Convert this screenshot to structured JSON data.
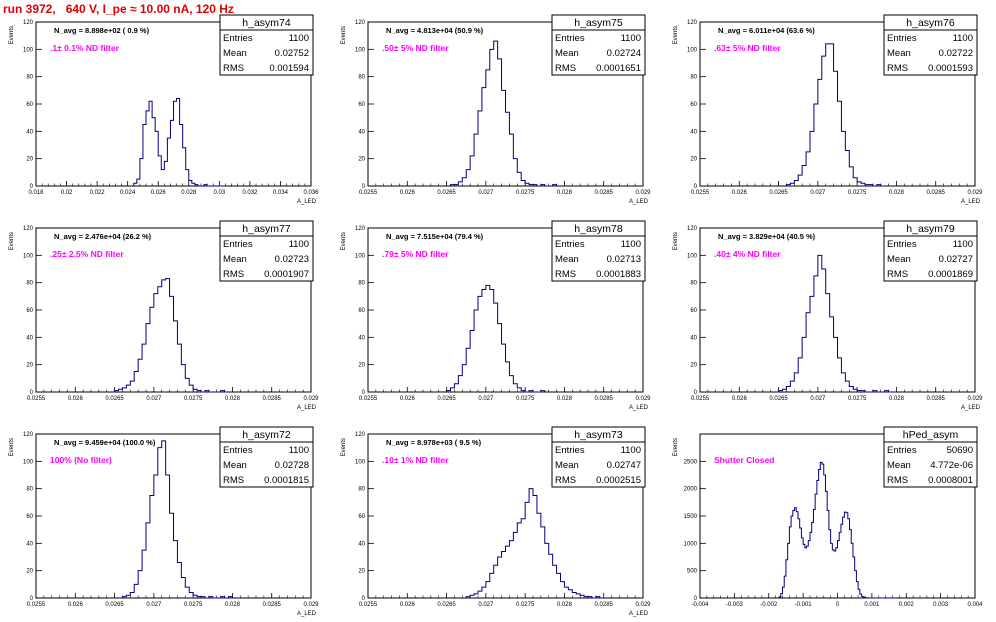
{
  "page": {
    "title": "run 3972,   640 V, I_pe ≈ 10.00 nA, 120 Hz",
    "title_color": "#e00000"
  },
  "style": {
    "hist_color": "#000080",
    "label_color": "#ff00ff",
    "axis_color": "#000000"
  },
  "chart_data": [
    {
      "type": "histogram",
      "name": "h_asym74",
      "navg": "N_avg = 8.898e+02 ( 0.9 %)",
      "label": ".1± 0.1% ND filter",
      "stats": [
        [
          "Entries",
          "1100"
        ],
        [
          "Mean",
          "0.02752"
        ],
        [
          "RMS",
          "0.001594"
        ]
      ],
      "ylabel": "Events",
      "xlabel": "A_LED",
      "xlim": [
        0.018,
        0.036
      ],
      "ylim": [
        0,
        120
      ],
      "xticks": [
        "0.018",
        "0.02",
        "0.022",
        "0.024",
        "0.026",
        "0.028",
        "0.03",
        "0.032",
        "0.034",
        "0.036"
      ],
      "yticks": [
        0,
        20,
        40,
        60,
        80,
        100,
        120
      ],
      "bin_edges": [
        0.0244,
        0.0304
      ],
      "bin_width": 0.0002,
      "counts": [
        2,
        5,
        20,
        45,
        55,
        62,
        50,
        40,
        22,
        12,
        18,
        35,
        48,
        62,
        64,
        45,
        28,
        12,
        4,
        2,
        1,
        0,
        0,
        1,
        0,
        0,
        0,
        0,
        0,
        0
      ]
    },
    {
      "type": "histogram",
      "name": "h_asym75",
      "navg": "N_avg = 4.813e+04 (50.9 %)",
      "label": ".50± 5% ND filter",
      "stats": [
        [
          "Entries",
          "1100"
        ],
        [
          "Mean",
          "0.02724"
        ],
        [
          "RMS",
          "0.0001651"
        ]
      ],
      "ylabel": "Events",
      "xlabel": "A_LED",
      "xlim": [
        0.0255,
        0.029
      ],
      "ylim": [
        0,
        120
      ],
      "xticks": [
        "0.0255",
        "0.026",
        "0.0265",
        "0.027",
        "0.0275",
        "0.028",
        "0.0285",
        "0.029"
      ],
      "yticks": [
        0,
        20,
        40,
        60,
        80,
        100,
        120
      ],
      "bin_edges": [
        0.02655,
        0.0279
      ],
      "bin_width": 5e-05,
      "counts": [
        1,
        1,
        3,
        6,
        12,
        22,
        38,
        55,
        72,
        85,
        100,
        106,
        93,
        70,
        54,
        38,
        20,
        10,
        4,
        2,
        1,
        1,
        0,
        1,
        0,
        0,
        1
      ]
    },
    {
      "type": "histogram",
      "name": "h_asym76",
      "navg": "N_avg = 6.011e+04 (63.6 %)",
      "label": ".63± 5% ND filter",
      "stats": [
        [
          "Entries",
          "1100"
        ],
        [
          "Mean",
          "0.02722"
        ],
        [
          "RMS",
          "0.0001593"
        ]
      ],
      "ylabel": "Events",
      "xlabel": "A_LED",
      "xlim": [
        0.0255,
        0.029
      ],
      "ylim": [
        0,
        120
      ],
      "xticks": [
        "0.0255",
        "0.026",
        "0.0265",
        "0.027",
        "0.0275",
        "0.028",
        "0.0285",
        "0.029"
      ],
      "yticks": [
        0,
        20,
        40,
        60,
        80,
        100,
        120
      ],
      "bin_edges": [
        0.0266,
        0.02785
      ],
      "bin_width": 5e-05,
      "counts": [
        1,
        2,
        4,
        8,
        15,
        25,
        40,
        60,
        78,
        95,
        104,
        104,
        84,
        62,
        40,
        26,
        14,
        6,
        3,
        2,
        1,
        1,
        0,
        1,
        0
      ]
    },
    {
      "type": "histogram",
      "name": "h_asym77",
      "navg": "N_avg = 2.476e+04 (26.2 %)",
      "label": ".25± 2.5% ND filter",
      "stats": [
        [
          "Entries",
          "1100"
        ],
        [
          "Mean",
          "0.02723"
        ],
        [
          "RMS",
          "0.0001907"
        ]
      ],
      "ylabel": "Events",
      "xlabel": "A_LED",
      "xlim": [
        0.0255,
        0.029
      ],
      "ylim": [
        0,
        120
      ],
      "xticks": [
        "0.0255",
        "0.026",
        "0.0265",
        "0.027",
        "0.0275",
        "0.028",
        "0.0285",
        "0.029"
      ],
      "yticks": [
        0,
        20,
        40,
        60,
        80,
        100,
        120
      ],
      "bin_edges": [
        0.0265,
        0.02795
      ],
      "bin_width": 5e-05,
      "counts": [
        1,
        2,
        3,
        5,
        8,
        15,
        24,
        35,
        50,
        62,
        72,
        77,
        82,
        83,
        70,
        52,
        35,
        20,
        10,
        5,
        2,
        1,
        0,
        1,
        0,
        0,
        0,
        1,
        0
      ]
    },
    {
      "type": "histogram",
      "name": "h_asym78",
      "navg": "N_avg = 7.515e+04 (79.4 %)",
      "label": ".79± 5% ND filter",
      "stats": [
        [
          "Entries",
          "1100"
        ],
        [
          "Mean",
          "0.02713"
        ],
        [
          "RMS",
          "0.0001883"
        ]
      ],
      "ylabel": "Events",
      "xlabel": "A_LED",
      "xlim": [
        0.0255,
        0.029
      ],
      "ylim": [
        0,
        120
      ],
      "xticks": [
        "0.0255",
        "0.026",
        "0.0265",
        "0.027",
        "0.0275",
        "0.028",
        "0.0285",
        "0.029"
      ],
      "yticks": [
        0,
        20,
        40,
        60,
        80,
        100,
        120
      ],
      "bin_edges": [
        0.0265,
        0.02775
      ],
      "bin_width": 5e-05,
      "counts": [
        1,
        3,
        6,
        12,
        20,
        32,
        45,
        60,
        70,
        75,
        78,
        75,
        65,
        50,
        35,
        22,
        12,
        6,
        3,
        1,
        0,
        1,
        0,
        0,
        1
      ]
    },
    {
      "type": "histogram",
      "name": "h_asym79",
      "navg": "N_avg = 3.829e+04 (40.5 %)",
      "label": ".40± 4% ND filter",
      "stats": [
        [
          "Entries",
          "1100"
        ],
        [
          "Mean",
          "0.02727"
        ],
        [
          "RMS",
          "0.0001869"
        ]
      ],
      "ylabel": "Events",
      "xlabel": "A_LED",
      "xlim": [
        0.0255,
        0.029
      ],
      "ylim": [
        0,
        120
      ],
      "xticks": [
        "0.0255",
        "0.026",
        "0.0265",
        "0.027",
        "0.0275",
        "0.028",
        "0.0285",
        "0.029"
      ],
      "yticks": [
        0,
        20,
        40,
        60,
        80,
        100,
        120
      ],
      "bin_edges": [
        0.0265,
        0.028
      ],
      "bin_width": 5e-05,
      "counts": [
        1,
        2,
        4,
        8,
        14,
        25,
        40,
        58,
        70,
        85,
        100,
        90,
        72,
        55,
        40,
        25,
        14,
        8,
        4,
        2,
        1,
        1,
        0,
        0,
        1,
        0,
        0,
        1,
        0,
        0
      ]
    },
    {
      "type": "histogram",
      "name": "h_asym72",
      "navg": "N_avg = 9.459e+04 (100.0 %)",
      "label": "100% (No filter)",
      "stats": [
        [
          "Entries",
          "1100"
        ],
        [
          "Mean",
          "0.02728"
        ],
        [
          "RMS",
          "0.0001815"
        ]
      ],
      "ylabel": "Events",
      "xlabel": "A_LED",
      "xlim": [
        0.0255,
        0.029
      ],
      "ylim": [
        0,
        120
      ],
      "xticks": [
        "0.0255",
        "0.026",
        "0.0265",
        "0.027",
        "0.0275",
        "0.028",
        "0.0285",
        "0.029"
      ],
      "yticks": [
        0,
        20,
        40,
        60,
        80,
        100,
        120
      ],
      "bin_edges": [
        0.0266,
        0.028
      ],
      "bin_width": 5e-05,
      "counts": [
        1,
        2,
        4,
        10,
        20,
        35,
        55,
        75,
        90,
        110,
        115,
        90,
        62,
        42,
        26,
        15,
        8,
        4,
        2,
        1,
        1,
        0,
        1,
        0,
        0,
        1,
        0,
        1
      ]
    },
    {
      "type": "histogram",
      "name": "h_asym73",
      "navg": "N_avg = 8.978e+03 ( 9.5 %)",
      "label": ".10± 1% ND filter",
      "stats": [
        [
          "Entries",
          "1100"
        ],
        [
          "Mean",
          "0.02747"
        ],
        [
          "RMS",
          "0.0002515"
        ]
      ],
      "ylabel": "Events",
      "xlabel": "A_LED",
      "xlim": [
        0.0255,
        0.029
      ],
      "ylim": [
        0,
        120
      ],
      "xticks": [
        "0.0255",
        "0.026",
        "0.0265",
        "0.027",
        "0.0275",
        "0.028",
        "0.0285",
        "0.029"
      ],
      "yticks": [
        0,
        20,
        40,
        60,
        80,
        100,
        120
      ],
      "bin_edges": [
        0.02675,
        0.0285
      ],
      "bin_width": 5e-05,
      "counts": [
        1,
        2,
        3,
        5,
        8,
        12,
        18,
        24,
        30,
        34,
        38,
        42,
        48,
        55,
        58,
        70,
        80,
        75,
        62,
        52,
        40,
        32,
        24,
        18,
        12,
        8,
        6,
        4,
        3,
        2,
        1,
        1,
        0,
        1,
        0
      ]
    },
    {
      "type": "histogram",
      "name": "hPed_asym",
      "navg": "",
      "label": "Shutter Closed",
      "stats": [
        [
          "Entries",
          "50690"
        ],
        [
          "Mean",
          "4.772e-06"
        ],
        [
          "RMS",
          "0.0008001"
        ]
      ],
      "ylabel": "Events",
      "xlabel": "",
      "xlim": [
        -0.004,
        0.004
      ],
      "ylim": [
        0,
        3000
      ],
      "xticks": [
        "-0.004",
        "-0.003",
        "-0.002",
        "-0.001",
        "0",
        "0.001",
        "0.002",
        "0.003",
        "0.004"
      ],
      "yticks": [
        0,
        500,
        1000,
        1500,
        2000,
        2500
      ],
      "bin_edges": [
        -0.0017,
        0.0017
      ],
      "bin_width": 5e-05,
      "counts": [
        20,
        80,
        200,
        400,
        700,
        1000,
        1300,
        1500,
        1600,
        1650,
        1580,
        1450,
        1280,
        1100,
        980,
        920,
        950,
        1050,
        1200,
        1380,
        1620,
        1900,
        2150,
        2350,
        2480,
        2450,
        2250,
        1950,
        1600,
        1250,
        1000,
        880,
        860,
        920,
        1050,
        1200,
        1350,
        1480,
        1570,
        1560,
        1450,
        1250,
        1000,
        750,
        500,
        300,
        160,
        70,
        30,
        10,
        5,
        2,
        1,
        0,
        0,
        0,
        0,
        0,
        0,
        0,
        0,
        0,
        0,
        0,
        0,
        0,
        0,
        0
      ]
    }
  ]
}
